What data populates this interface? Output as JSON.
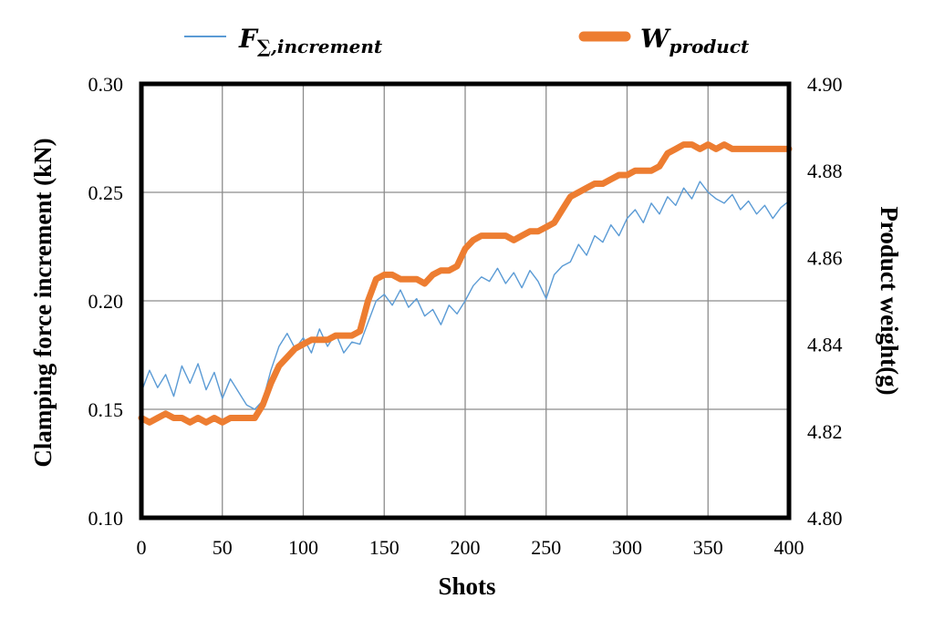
{
  "chart_data": {
    "type": "line",
    "xlabel": "Shots",
    "ylabel_left": "Clamping force increment (kN)",
    "ylabel_right": "Product weight(g)",
    "xlim": [
      0,
      400
    ],
    "xticks": [
      "0",
      "50",
      "100",
      "150",
      "200",
      "250",
      "300",
      "350",
      "400"
    ],
    "ylim_left": [
      0.1,
      0.3
    ],
    "yticks_left": [
      "0.10",
      "0.15",
      "0.20",
      "0.25",
      "0.30"
    ],
    "ylim_right": [
      4.8,
      4.9
    ],
    "yticks_right": [
      "4.80",
      "4.82",
      "4.84",
      "4.86",
      "4.88",
      "4.90"
    ],
    "grid": true,
    "legend_position": "top",
    "legend": [
      {
        "main": "F",
        "sub": "∑,increment",
        "color": "#5b9bd5"
      },
      {
        "main": "W",
        "sub": "product",
        "color": "#ed7d31"
      }
    ],
    "series": [
      {
        "axis": "left",
        "color": "#5b9bd5",
        "x": [
          0,
          5,
          10,
          15,
          20,
          25,
          30,
          35,
          40,
          45,
          50,
          55,
          60,
          65,
          70,
          75,
          80,
          85,
          90,
          95,
          100,
          105,
          110,
          115,
          120,
          125,
          130,
          135,
          140,
          145,
          150,
          155,
          160,
          165,
          170,
          175,
          180,
          185,
          190,
          195,
          200,
          205,
          210,
          215,
          220,
          225,
          230,
          235,
          240,
          245,
          250,
          255,
          260,
          265,
          270,
          275,
          280,
          285,
          290,
          295,
          300,
          305,
          310,
          315,
          320,
          325,
          330,
          335,
          340,
          345,
          350,
          355,
          360,
          365,
          370,
          375,
          380,
          385,
          390,
          395,
          400
        ],
        "y": [
          0.158,
          0.168,
          0.16,
          0.166,
          0.156,
          0.17,
          0.162,
          0.171,
          0.159,
          0.167,
          0.155,
          0.164,
          0.158,
          0.152,
          0.15,
          0.154,
          0.168,
          0.179,
          0.185,
          0.178,
          0.183,
          0.176,
          0.187,
          0.179,
          0.185,
          0.176,
          0.181,
          0.18,
          0.19,
          0.2,
          0.203,
          0.198,
          0.205,
          0.197,
          0.201,
          0.193,
          0.196,
          0.189,
          0.198,
          0.194,
          0.2,
          0.207,
          0.211,
          0.209,
          0.215,
          0.208,
          0.213,
          0.206,
          0.214,
          0.209,
          0.201,
          0.212,
          0.216,
          0.218,
          0.226,
          0.221,
          0.23,
          0.227,
          0.235,
          0.23,
          0.238,
          0.242,
          0.236,
          0.245,
          0.24,
          0.248,
          0.244,
          0.252,
          0.247,
          0.255,
          0.25,
          0.247,
          0.245,
          0.249,
          0.242,
          0.246,
          0.24,
          0.244,
          0.238,
          0.243,
          0.246
        ]
      },
      {
        "axis": "right",
        "color": "#ed7d31",
        "x": [
          0,
          5,
          10,
          15,
          20,
          25,
          30,
          35,
          40,
          45,
          50,
          55,
          60,
          65,
          70,
          75,
          80,
          85,
          90,
          95,
          100,
          105,
          110,
          115,
          120,
          125,
          130,
          135,
          140,
          145,
          150,
          155,
          160,
          165,
          170,
          175,
          180,
          185,
          190,
          195,
          200,
          205,
          210,
          215,
          220,
          225,
          230,
          235,
          240,
          245,
          250,
          255,
          260,
          265,
          270,
          275,
          280,
          285,
          290,
          295,
          300,
          305,
          310,
          315,
          320,
          325,
          330,
          335,
          340,
          345,
          350,
          355,
          360,
          365,
          370,
          375,
          380,
          385,
          390,
          395,
          400
        ],
        "y": [
          4.823,
          4.822,
          4.823,
          4.824,
          4.823,
          4.823,
          4.822,
          4.823,
          4.822,
          4.823,
          4.822,
          4.823,
          4.823,
          4.823,
          4.823,
          4.826,
          4.831,
          4.835,
          4.837,
          4.839,
          4.84,
          4.841,
          4.841,
          4.841,
          4.842,
          4.842,
          4.842,
          4.843,
          4.85,
          4.855,
          4.856,
          4.856,
          4.855,
          4.855,
          4.855,
          4.854,
          4.856,
          4.857,
          4.857,
          4.858,
          4.862,
          4.864,
          4.865,
          4.865,
          4.865,
          4.865,
          4.864,
          4.865,
          4.866,
          4.866,
          4.867,
          4.868,
          4.871,
          4.874,
          4.875,
          4.876,
          4.877,
          4.877,
          4.878,
          4.879,
          4.879,
          4.88,
          4.88,
          4.88,
          4.881,
          4.884,
          4.885,
          4.886,
          4.886,
          4.885,
          4.886,
          4.885,
          4.886,
          4.885,
          4.885,
          4.885,
          4.885,
          4.885,
          4.885,
          4.885,
          4.885
        ]
      }
    ]
  }
}
